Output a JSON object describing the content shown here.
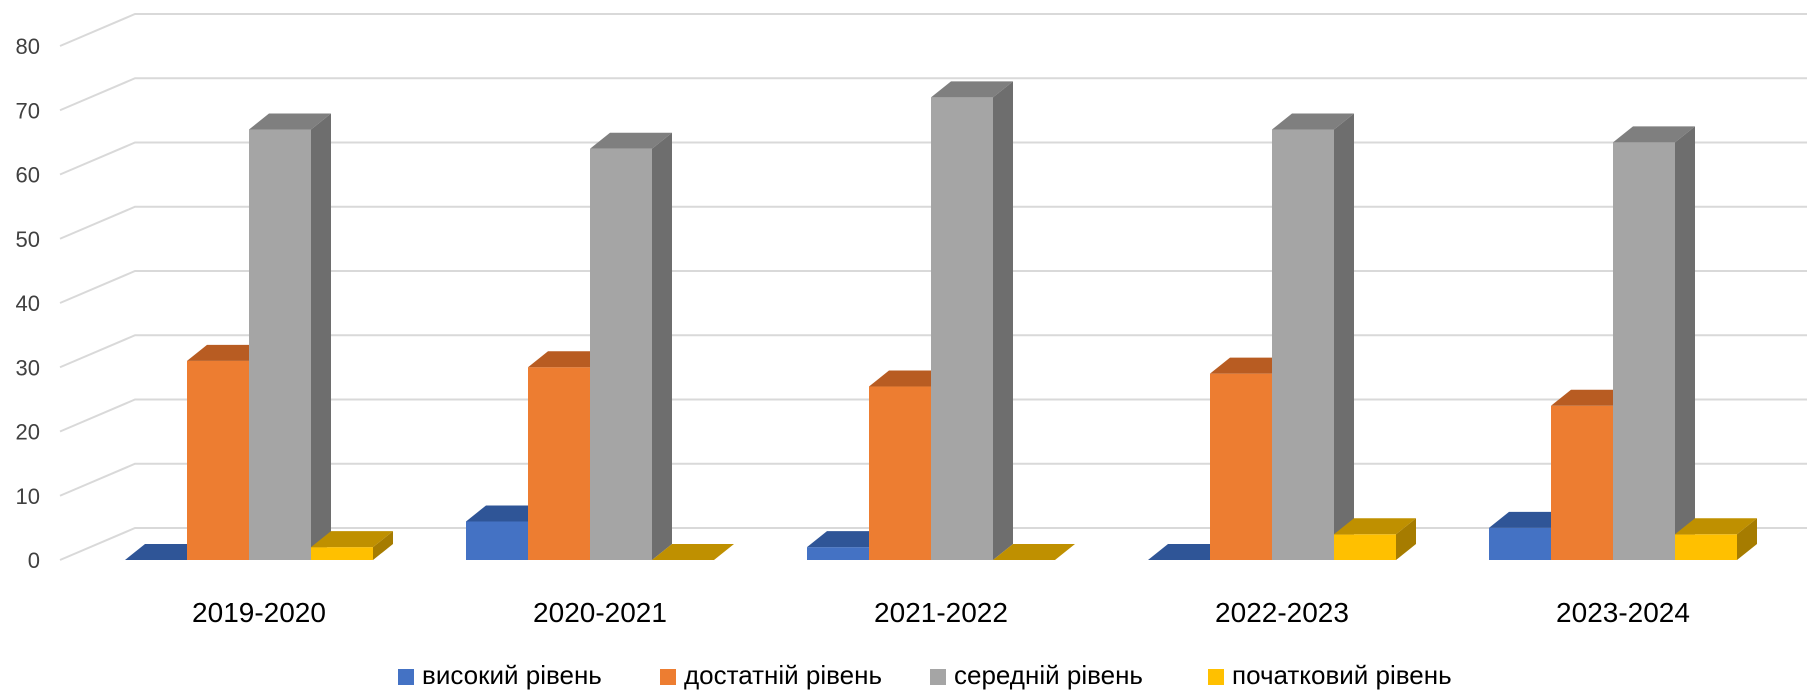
{
  "chart_data": {
    "type": "bar",
    "view": "3d-clustered-column",
    "categories": [
      "2019-2020",
      "2020-2021",
      "2021-2022",
      "2022-2023",
      "2023-2024"
    ],
    "series": [
      {
        "name": "високий рівень",
        "values": [
          0,
          6,
          2,
          0,
          5
        ],
        "color": "#4472c4",
        "top_color": "#2f5597",
        "side_color": "#2f5597"
      },
      {
        "name": "достатній рівень",
        "values": [
          31,
          30,
          27,
          29,
          24
        ],
        "color": "#ed7d31",
        "top_color": "#b85c22",
        "side_color": "#c55a11"
      },
      {
        "name": "середній рівень",
        "values": [
          67,
          64,
          72,
          67,
          65
        ],
        "color": "#a5a5a5",
        "top_color": "#7f7f7f",
        "side_color": "#6e6e6e"
      },
      {
        "name": "початковий рівень",
        "values": [
          2,
          0,
          0,
          4,
          4
        ],
        "color": "#ffc000",
        "top_color": "#bf9000",
        "side_color": "#a67c00"
      }
    ],
    "yticks": [
      0,
      10,
      20,
      30,
      40,
      50,
      60,
      70,
      80
    ],
    "ylim": [
      0,
      80
    ],
    "grid": true,
    "legend": "bottom",
    "title": "",
    "xlabel": "",
    "ylabel": ""
  }
}
